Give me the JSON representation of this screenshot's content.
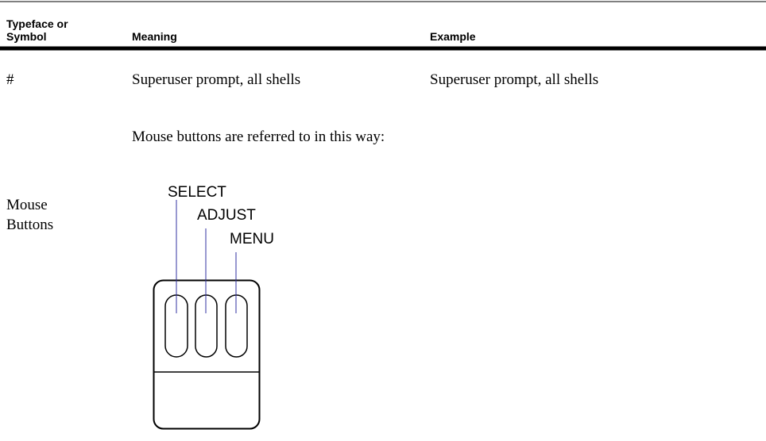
{
  "table": {
    "header": [
      "Typeface or Symbol",
      "Meaning",
      "Example"
    ],
    "rows": [
      [
        "#",
        "Superuser prompt, all shells",
        "Superuser prompt, all shells"
      ],
      [
        "Mouse Buttons",
        "Mouse buttons are referred to in this way:"
      ]
    ]
  },
  "diagram": {
    "labels": [
      "SELECT",
      "ADJUST",
      "MENU"
    ]
  }
}
